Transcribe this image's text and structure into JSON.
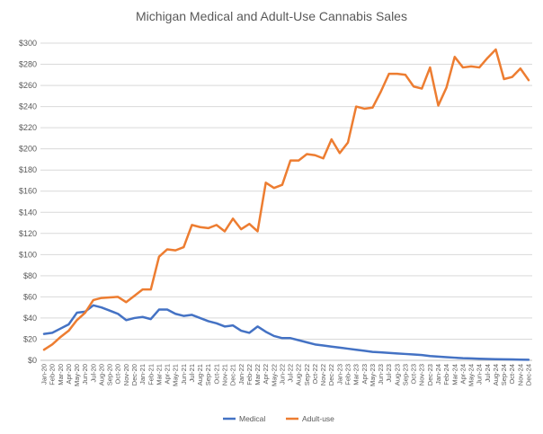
{
  "chart_data": {
    "type": "line",
    "title": "Michigan Medical and Adult-Use Cannabis Sales",
    "xlabel": "",
    "ylabel": "",
    "ylim": [
      0,
      300
    ],
    "yticks": [
      0,
      20,
      40,
      60,
      80,
      100,
      120,
      140,
      160,
      180,
      200,
      220,
      240,
      260,
      280,
      300
    ],
    "ytick_labels": [
      "$0",
      "$20",
      "$40",
      "$60",
      "$80",
      "$100",
      "$120",
      "$140",
      "$160",
      "$180",
      "$200",
      "$220",
      "$240",
      "$260",
      "$280",
      "$300"
    ],
    "grid": true,
    "legend_position": "bottom",
    "categories": [
      "Jan-20",
      "Feb-20",
      "Mar-20",
      "Apr-20",
      "May-20",
      "Jun-20",
      "Jul-20",
      "Aug-20",
      "Sep-20",
      "Oct-20",
      "Nov-20",
      "Dec-20",
      "Jan-21",
      "Feb-21",
      "Mar-21",
      "Apr-21",
      "May-21",
      "Jun-21",
      "Jul-21",
      "Aug-21",
      "Sep-21",
      "Oct-21",
      "Nov-21",
      "Dec-21",
      "Jan-22",
      "Feb-22",
      "Mar-22",
      "Apr-22",
      "May-22",
      "Jun-22",
      "Jul-22",
      "Aug-22",
      "Sep-22",
      "Oct-22",
      "Nov-22",
      "Dec-22",
      "Jan-23",
      "Feb-23",
      "Mar-23",
      "Apr-23",
      "May-23",
      "Jun-23",
      "Jul-23",
      "Aug-23",
      "Sep-23",
      "Oct-23",
      "Nov-23",
      "Dec-23",
      "Jan-24",
      "Feb-24",
      "Mar-24",
      "Apr-24",
      "May-24",
      "Jun-24",
      "Jul-24",
      "Aug-24",
      "Sep-24",
      "Oct-24",
      "Nov-24",
      "Dec-24"
    ],
    "series": [
      {
        "name": "Medical",
        "color": "#4472c4",
        "values": [
          25,
          26,
          30,
          34,
          45,
          46,
          52,
          50,
          47,
          44,
          38,
          40,
          41,
          39,
          48,
          48,
          44,
          42,
          43,
          40,
          37,
          35,
          32,
          33,
          28,
          26,
          32,
          27,
          23,
          21,
          21,
          19,
          17,
          15,
          14,
          13,
          12,
          11,
          10,
          9,
          8,
          7.5,
          7,
          6.5,
          6,
          5.5,
          5,
          4,
          3.5,
          3,
          2.5,
          2,
          1.8,
          1.5,
          1.3,
          1.1,
          1,
          0.8,
          0.6,
          0.5
        ]
      },
      {
        "name": "Adult-use",
        "color": "#ed7d31",
        "values": [
          10,
          15,
          22,
          28,
          38,
          45,
          57,
          59,
          59.5,
          60,
          55,
          61,
          67,
          67,
          98,
          105,
          104,
          107,
          128,
          126,
          125,
          128,
          122,
          134,
          124,
          129,
          122,
          168,
          163,
          166,
          189,
          189,
          195,
          194,
          191,
          209,
          196,
          206,
          240,
          238,
          239,
          254,
          271,
          271,
          270,
          259,
          257,
          277,
          241,
          258,
          287,
          277,
          278,
          277,
          286,
          294,
          266,
          268,
          276,
          265
        ]
      }
    ]
  }
}
